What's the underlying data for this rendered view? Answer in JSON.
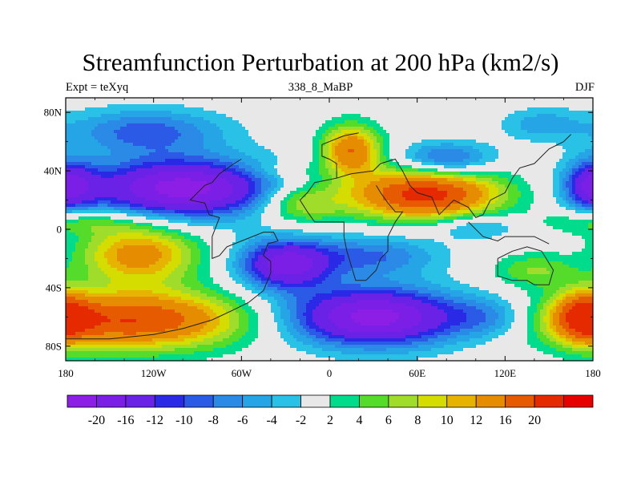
{
  "title": "Streamfunction Perturbation at 200 hPa (km2/s)",
  "left_label": "Expt = teXyq",
  "center_label": "338_8_MaBP",
  "right_label": "DJF",
  "map": {
    "projection": "cylindrical-equidistant",
    "lon_range": [
      -180,
      180
    ],
    "lat_range": [
      -90,
      90
    ],
    "x_ticks": [
      {
        "lon": -180,
        "label": "180"
      },
      {
        "lon": -120,
        "label": "120W"
      },
      {
        "lon": -60,
        "label": "60W"
      },
      {
        "lon": 0,
        "label": "0"
      },
      {
        "lon": 60,
        "label": "60E"
      },
      {
        "lon": 120,
        "label": "120E"
      },
      {
        "lon": 180,
        "label": "180"
      }
    ],
    "y_ticks": [
      {
        "lat": 80,
        "label": "80N"
      },
      {
        "lat": 40,
        "label": "40N"
      },
      {
        "lat": 0,
        "label": "0"
      },
      {
        "lat": -40,
        "label": "40S"
      },
      {
        "lat": -80,
        "label": "80S"
      }
    ],
    "features": [
      {
        "name": "north-pacific-low",
        "lon": -125,
        "lat": 67,
        "peak": -9,
        "slon": 38,
        "slat": 11
      },
      {
        "name": "north-pacific-tropical-low",
        "lon": -100,
        "lat": 28,
        "peak": -22,
        "slon": 45,
        "slat": 14
      },
      {
        "name": "west-pacific-edge-low",
        "lon": -175,
        "lat": 30,
        "peak": -9,
        "slon": 14,
        "slat": 12
      },
      {
        "name": "east-pacific-edge-low",
        "lon": 175,
        "lat": 30,
        "peak": -7,
        "slon": 12,
        "slat": 12
      },
      {
        "name": "central-pacific-high",
        "lon": -170,
        "lat": 5,
        "peak": 6,
        "slon": 30,
        "slat": 6
      },
      {
        "name": "europe-high",
        "lon": 15,
        "lat": 54,
        "peak": 16,
        "slon": 14,
        "slat": 12
      },
      {
        "name": "asia-subtropical-high",
        "lon": 65,
        "lat": 24,
        "peak": 22,
        "slon": 36,
        "slat": 12
      },
      {
        "name": "atlantic-tropical-high",
        "lon": -20,
        "lat": 18,
        "peak": 9,
        "slon": 20,
        "slat": 10
      },
      {
        "name": "siberia-low",
        "lon": 80,
        "lat": 48,
        "peak": -10,
        "slon": 22,
        "slat": 8
      },
      {
        "name": "northeast-pacific-low",
        "lon": 145,
        "lat": 72,
        "peak": -5,
        "slon": 20,
        "slat": 8
      },
      {
        "name": "gulf-high",
        "lon": -30,
        "lat": 40,
        "peak": 3,
        "slon": 20,
        "slat": 5
      },
      {
        "name": "south-pacific-high",
        "lon": -130,
        "lat": -17,
        "peak": 14,
        "slon": 28,
        "slat": 14
      },
      {
        "name": "south-pacific-deep-high",
        "lon": -135,
        "lat": -62,
        "peak": 20,
        "slon": 55,
        "slat": 14
      },
      {
        "name": "south-american-low",
        "lon": -30,
        "lat": -24,
        "peak": -18,
        "slon": 22,
        "slat": 12
      },
      {
        "name": "africa-south-low",
        "lon": 30,
        "lat": -60,
        "peak": -22,
        "slon": 42,
        "slat": 14
      },
      {
        "name": "indian-ocean-low",
        "lon": 30,
        "lat": -18,
        "peak": -8,
        "slon": 32,
        "slat": 10
      },
      {
        "name": "australia-high",
        "lon": 140,
        "lat": -28,
        "peak": 6,
        "slon": 20,
        "slat": 8
      },
      {
        "name": "south-pacific-east-high",
        "lon": 175,
        "lat": -60,
        "peak": 16,
        "slon": 14,
        "slat": 12
      },
      {
        "name": "south-indian-low",
        "lon": 110,
        "lat": -60,
        "peak": -6,
        "slon": 20,
        "slat": 10
      },
      {
        "name": "equatorial-pacific-low",
        "lon": 100,
        "lat": 2,
        "peak": -6,
        "slon": 20,
        "slat": 6
      }
    ],
    "coastline": [
      [
        [
          -180,
          -75
        ],
        [
          -150,
          -75
        ],
        [
          -120,
          -72
        ],
        [
          -100,
          -68
        ],
        [
          -80,
          -62
        ],
        [
          -65,
          -55
        ],
        [
          -55,
          -50
        ],
        [
          -45,
          -42
        ],
        [
          -40,
          -30
        ],
        [
          -40,
          -22
        ],
        [
          -45,
          -18
        ],
        [
          -42,
          -10
        ],
        [
          -35,
          -8
        ],
        [
          -38,
          -2
        ],
        [
          -45,
          -2
        ],
        [
          -60,
          -8
        ],
        [
          -70,
          -12
        ],
        [
          -75,
          -18
        ],
        [
          -80,
          -20
        ],
        [
          -80,
          -5
        ],
        [
          -75,
          8
        ],
        [
          -82,
          10
        ],
        [
          -85,
          18
        ],
        [
          -95,
          20
        ],
        [
          -90,
          25
        ],
        [
          -85,
          30
        ],
        [
          -80,
          32
        ]
      ],
      [
        [
          -80,
          32
        ],
        [
          -75,
          38
        ],
        [
          -65,
          45
        ],
        [
          -60,
          48
        ]
      ],
      [
        [
          -20,
          20
        ],
        [
          -15,
          25
        ],
        [
          -10,
          32
        ],
        [
          5,
          35
        ],
        [
          15,
          38
        ],
        [
          30,
          40
        ],
        [
          35,
          45
        ],
        [
          45,
          48
        ],
        [
          50,
          40
        ],
        [
          55,
          30
        ],
        [
          60,
          25
        ],
        [
          70,
          22
        ],
        [
          75,
          10
        ],
        [
          80,
          15
        ],
        [
          85,
          20
        ],
        [
          95,
          15
        ],
        [
          100,
          8
        ],
        [
          105,
          10
        ],
        [
          110,
          20
        ],
        [
          120,
          25
        ],
        [
          125,
          35
        ],
        [
          130,
          42
        ],
        [
          140,
          45
        ],
        [
          150,
          55
        ],
        [
          160,
          60
        ],
        [
          165,
          65
        ]
      ],
      [
        [
          -20,
          20
        ],
        [
          -15,
          12
        ],
        [
          -10,
          5
        ],
        [
          0,
          5
        ],
        [
          10,
          5
        ],
        [
          10,
          -5
        ],
        [
          12,
          -15
        ],
        [
          15,
          -25
        ],
        [
          18,
          -35
        ],
        [
          25,
          -35
        ],
        [
          32,
          -28
        ],
        [
          35,
          -20
        ],
        [
          40,
          -15
        ],
        [
          40,
          -5
        ],
        [
          45,
          5
        ],
        [
          50,
          12
        ],
        [
          45,
          12
        ],
        [
          40,
          18
        ],
        [
          35,
          25
        ],
        [
          32,
          30
        ]
      ],
      [
        [
          5,
          35
        ],
        [
          5,
          45
        ],
        [
          0,
          48
        ],
        [
          -5,
          50
        ],
        [
          -5,
          58
        ],
        [
          5,
          62
        ],
        [
          10,
          64
        ],
        [
          20,
          66
        ]
      ],
      [
        [
          115,
          -20
        ],
        [
          115,
          -32
        ],
        [
          125,
          -35
        ],
        [
          135,
          -35
        ],
        [
          140,
          -38
        ],
        [
          150,
          -38
        ],
        [
          153,
          -28
        ],
        [
          145,
          -15
        ],
        [
          135,
          -12
        ],
        [
          125,
          -15
        ],
        [
          115,
          -20
        ]
      ],
      [
        [
          120,
          -5
        ],
        [
          140,
          -5
        ],
        [
          150,
          -10
        ]
      ],
      [
        [
          95,
          5
        ],
        [
          105,
          -5
        ],
        [
          115,
          -8
        ],
        [
          120,
          -5
        ]
      ]
    ]
  },
  "colorbar": {
    "colors": [
      "#8c1ee6",
      "#7b1ee6",
      "#6a22e6",
      "#2a2ae6",
      "#2a5ae6",
      "#2a8ae6",
      "#25a5e6",
      "#2ac1e6",
      "#e8e8e8",
      "#00dc8c",
      "#55dc2a",
      "#a0dc2a",
      "#d4dc00",
      "#e6b400",
      "#e68c00",
      "#e65a00",
      "#e62a00",
      "#e60000"
    ],
    "levels": [
      -20,
      -16,
      -12,
      -10,
      -8,
      -6,
      -4,
      -2,
      2,
      4,
      6,
      8,
      10,
      12,
      16,
      20
    ],
    "labels": [
      "-20",
      "-16",
      "-12",
      "-10",
      "-8",
      "-6",
      "-4",
      "-2",
      "2",
      "4",
      "6",
      "8",
      "10",
      "12",
      "16",
      "20"
    ]
  }
}
